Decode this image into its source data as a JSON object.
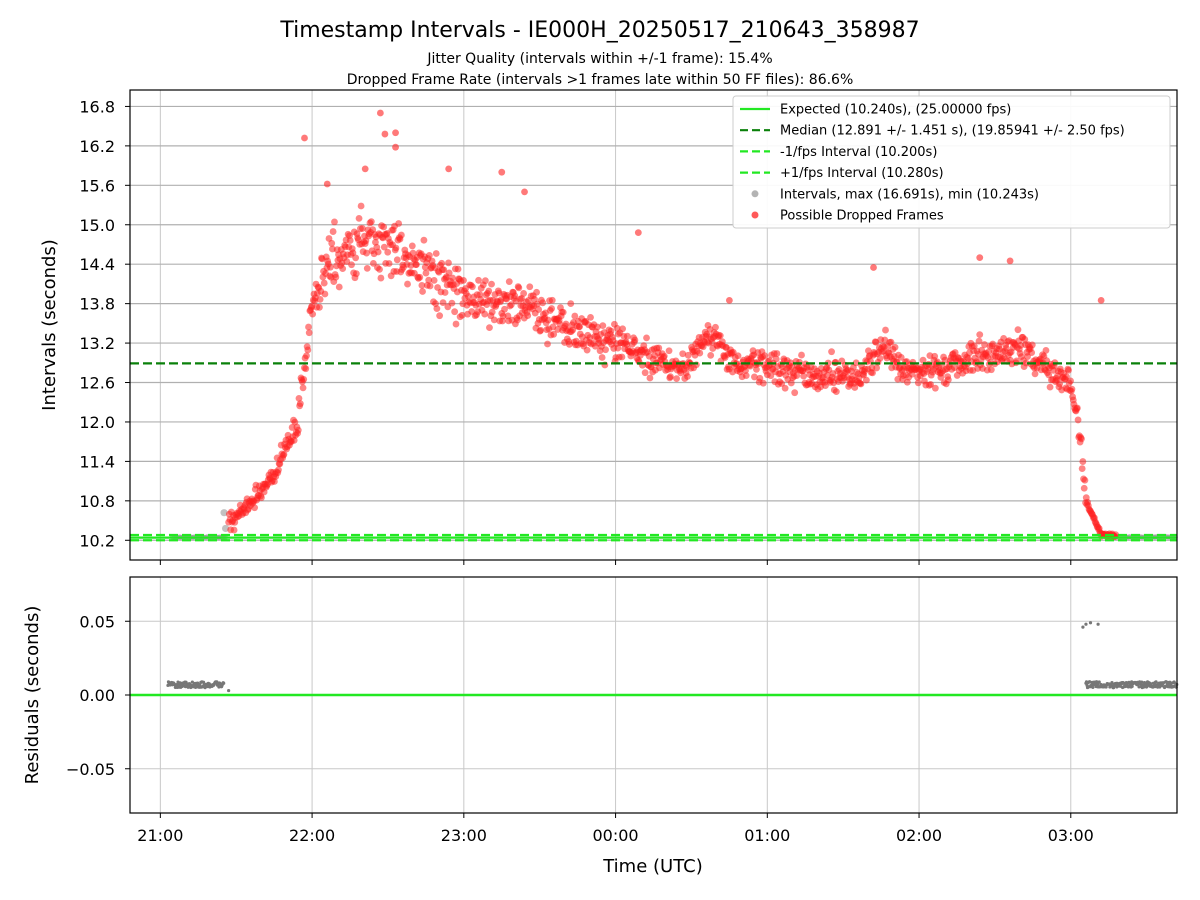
{
  "chart_data": {
    "type": "scatter",
    "title": "Timestamp Intervals - IE000H_20250517_210643_358987",
    "subtitle_1": "Jitter Quality (intervals within +/-1 frame): 15.4%",
    "subtitle_2": "Dropped Frame Rate (intervals >1 frames late within 50 FF files): 86.6%",
    "xlabel": "Time (UTC)",
    "top_ylabel": "Intervals (seconds)",
    "bottom_ylabel": "Residuals (seconds)",
    "x_ticks": [
      "21:00",
      "22:00",
      "23:00",
      "00:00",
      "01:00",
      "02:00",
      "03:00"
    ],
    "x_range_hours": [
      20.8,
      27.7
    ],
    "top_yticks": [
      "10.2",
      "10.8",
      "11.4",
      "12.0",
      "12.6",
      "13.2",
      "13.8",
      "14.4",
      "15.0",
      "15.6",
      "16.2",
      "16.8"
    ],
    "top_ylim": [
      9.9,
      17.05
    ],
    "bottom_yticks": [
      "−0.05",
      "0.00",
      "0.05"
    ],
    "bottom_ylim": [
      -0.08,
      0.08
    ],
    "grid": true,
    "legend_position": "top-right",
    "reference_lines": {
      "expected": 10.24,
      "median": 12.891,
      "minus_1_fps": 10.2,
      "plus_1_fps": 10.28
    },
    "legend": [
      {
        "label": "Expected (10.240s), (25.00000 fps)",
        "style": "solid",
        "color": "#22e822"
      },
      {
        "label": "Median (12.891 +/- 1.451 s), (19.85941 +/- 2.50 fps)",
        "style": "dashed",
        "color": "#0a800a"
      },
      {
        "label": "-1/fps Interval (10.200s)",
        "style": "dashed",
        "color": "#22e822"
      },
      {
        "label": "+1/fps Interval (10.280s)",
        "style": "dashed",
        "color": "#22e822"
      },
      {
        "label": "Intervals, max (16.691s), min (10.243s)",
        "style": "marker",
        "color": "#9a9a9a"
      },
      {
        "label": "Possible Dropped Frames",
        "style": "marker",
        "color": "#ff2222"
      }
    ],
    "trend_profile": {
      "hours": [
        21.45,
        21.6,
        21.75,
        21.9,
        22.0,
        22.15,
        22.4,
        22.6,
        22.8,
        23.0,
        23.3,
        23.6,
        23.85,
        24.0,
        24.2,
        24.45,
        24.6,
        24.8,
        25.0,
        25.3,
        25.6,
        25.75,
        25.9,
        26.2,
        26.5,
        26.7,
        26.9,
        27.0,
        27.05,
        27.1,
        27.2,
        27.3
      ],
      "values": [
        10.45,
        10.8,
        11.2,
        12.0,
        13.8,
        14.5,
        14.8,
        14.5,
        14.2,
        13.85,
        13.8,
        13.5,
        13.3,
        13.2,
        13.0,
        12.8,
        13.3,
        12.9,
        12.85,
        12.7,
        12.7,
        13.2,
        12.75,
        12.85,
        13.05,
        13.1,
        12.7,
        12.55,
        12.0,
        10.8,
        10.3,
        10.25
      ]
    },
    "outlier_points": [
      {
        "t": 21.95,
        "v": 16.32
      },
      {
        "t": 22.45,
        "v": 16.7
      },
      {
        "t": 22.48,
        "v": 16.38
      },
      {
        "t": 22.55,
        "v": 16.4
      },
      {
        "t": 22.9,
        "v": 15.85
      },
      {
        "t": 22.55,
        "v": 16.18
      },
      {
        "t": 22.1,
        "v": 15.62
      },
      {
        "t": 22.35,
        "v": 15.85
      },
      {
        "t": 23.25,
        "v": 15.8
      },
      {
        "t": 23.4,
        "v": 15.5
      },
      {
        "t": 24.15,
        "v": 14.88
      },
      {
        "t": 25.7,
        "v": 14.35
      },
      {
        "t": 26.4,
        "v": 14.5
      },
      {
        "t": 26.6,
        "v": 14.45
      },
      {
        "t": 27.2,
        "v": 13.85
      },
      {
        "t": 24.75,
        "v": 13.85
      }
    ],
    "residual_clusters": [
      {
        "t_start": 21.05,
        "t_end": 21.42,
        "value": 0.007
      },
      {
        "t_start": 27.1,
        "t_end": 27.7,
        "value": 0.007
      }
    ],
    "residual_outliers": [
      {
        "t": 27.08,
        "v": 0.046
      },
      {
        "t": 27.1,
        "v": 0.048
      },
      {
        "t": 27.13,
        "v": 0.049
      },
      {
        "t": 27.18,
        "v": 0.048
      },
      {
        "t": 21.45,
        "v": 0.003
      }
    ]
  }
}
